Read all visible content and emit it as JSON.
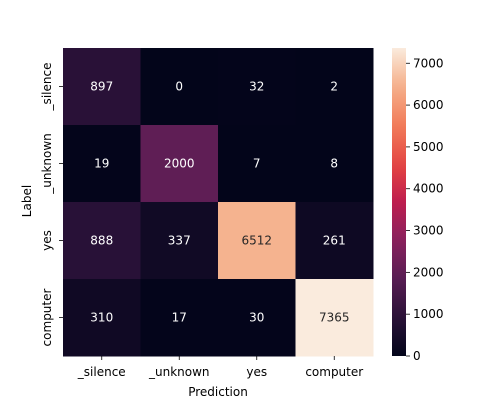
{
  "chart_data": {
    "type": "heatmap",
    "xlabel": "Prediction",
    "ylabel": "Label",
    "x_categories": [
      "_silence",
      "_unknown",
      "yes",
      "computer"
    ],
    "y_categories": [
      "_silence",
      "_unknown",
      "yes",
      "computer"
    ],
    "values": [
      [
        897,
        0,
        32,
        2
      ],
      [
        19,
        2000,
        7,
        8
      ],
      [
        888,
        337,
        6512,
        261
      ],
      [
        310,
        17,
        30,
        7365
      ]
    ],
    "colorbar": {
      "ticks": [
        0,
        1000,
        2000,
        3000,
        4000,
        5000,
        6000,
        7000
      ],
      "range": [
        0,
        7365
      ],
      "colormap": "rocket"
    }
  }
}
